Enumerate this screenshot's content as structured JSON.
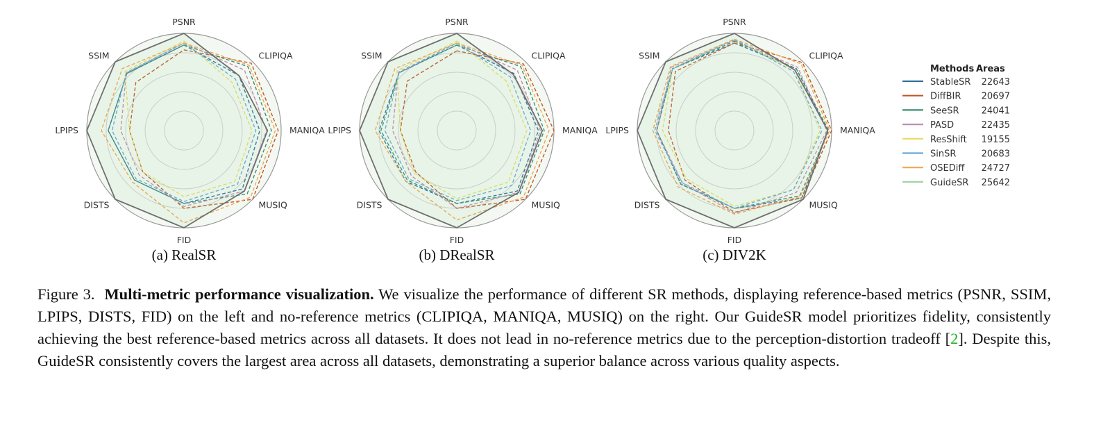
{
  "chart_data": [
    {
      "type": "radar",
      "caption": "(a) RealSR",
      "axes": [
        "PSNR",
        "CLIPIQA",
        "MANIQA",
        "MUSIQ",
        "FID",
        "DISTS",
        "LPIPS",
        "SSIM"
      ],
      "rlim": [
        0,
        1
      ],
      "series": [
        {
          "name": "StableSR",
          "values": [
            0.88,
            0.8,
            0.78,
            0.85,
            0.75,
            0.72,
            0.78,
            0.83
          ]
        },
        {
          "name": "DiffBIR",
          "values": [
            0.83,
            0.98,
            0.97,
            1.0,
            0.8,
            0.6,
            0.56,
            0.7
          ]
        },
        {
          "name": "SeeSR",
          "values": [
            0.88,
            0.93,
            0.9,
            0.92,
            0.75,
            0.72,
            0.78,
            0.83
          ]
        },
        {
          "name": "PASD",
          "values": [
            0.9,
            0.88,
            0.85,
            0.88,
            0.78,
            0.65,
            0.65,
            0.84
          ]
        },
        {
          "name": "ResShift",
          "values": [
            0.92,
            0.7,
            0.7,
            0.74,
            0.68,
            0.6,
            0.56,
            0.86
          ]
        },
        {
          "name": "SinSR",
          "values": [
            0.9,
            0.75,
            0.74,
            0.78,
            0.73,
            0.7,
            0.74,
            0.84
          ]
        },
        {
          "name": "OSEDiff",
          "values": [
            0.9,
            0.95,
            0.94,
            0.97,
            0.95,
            0.75,
            0.85,
            0.9
          ]
        },
        {
          "name": "GuideSR",
          "values": [
            1.0,
            0.8,
            0.86,
            0.88,
            1.0,
            1.0,
            1.0,
            1.0
          ]
        }
      ]
    },
    {
      "type": "radar",
      "caption": "(b) DRealSR",
      "axes": [
        "PSNR",
        "CLIPIQA",
        "MANIQA",
        "MUSIQ",
        "FID",
        "DISTS",
        "LPIPS",
        "SSIM"
      ],
      "rlim": [
        0,
        1
      ],
      "series": [
        {
          "name": "StableSR",
          "values": [
            0.88,
            0.83,
            0.84,
            0.88,
            0.75,
            0.74,
            0.8,
            0.84
          ]
        },
        {
          "name": "DiffBIR",
          "values": [
            0.82,
            0.97,
            1.0,
            1.0,
            0.8,
            0.6,
            0.58,
            0.72
          ]
        },
        {
          "name": "SeeSR",
          "values": [
            0.88,
            0.93,
            0.9,
            0.92,
            0.75,
            0.72,
            0.78,
            0.84
          ]
        },
        {
          "name": "PASD",
          "values": [
            0.9,
            0.88,
            0.86,
            0.9,
            0.8,
            0.66,
            0.66,
            0.85
          ]
        },
        {
          "name": "ResShift",
          "values": [
            0.92,
            0.72,
            0.72,
            0.75,
            0.7,
            0.62,
            0.58,
            0.87
          ]
        },
        {
          "name": "SinSR",
          "values": [
            0.9,
            0.78,
            0.76,
            0.8,
            0.72,
            0.7,
            0.74,
            0.84
          ]
        },
        {
          "name": "OSEDiff",
          "values": [
            0.9,
            0.95,
            0.95,
            0.97,
            0.92,
            0.74,
            0.84,
            0.9
          ]
        },
        {
          "name": "GuideSR",
          "values": [
            1.0,
            0.82,
            0.88,
            0.9,
            1.0,
            1.0,
            1.0,
            1.0
          ]
        }
      ]
    },
    {
      "type": "radar",
      "caption": "(c) DIV2K",
      "axes": [
        "PSNR",
        "CLIPIQA",
        "MANIQA",
        "MUSIQ",
        "FID",
        "DISTS",
        "LPIPS",
        "SSIM"
      ],
      "rlim": [
        0,
        1
      ],
      "series": [
        {
          "name": "StableSR",
          "values": [
            0.9,
            0.9,
            0.96,
            0.98,
            0.8,
            0.78,
            0.8,
            0.9
          ]
        },
        {
          "name": "DiffBIR",
          "values": [
            0.9,
            0.99,
            1.0,
            0.98,
            0.84,
            0.72,
            0.68,
            0.86
          ]
        },
        {
          "name": "SeeSR",
          "values": [
            0.92,
            0.9,
            0.97,
            0.95,
            0.8,
            0.78,
            0.8,
            0.9
          ]
        },
        {
          "name": "PASD",
          "values": [
            0.93,
            0.92,
            0.95,
            0.9,
            0.85,
            0.76,
            0.8,
            0.92
          ]
        },
        {
          "name": "ResShift",
          "values": [
            0.94,
            0.88,
            0.88,
            0.86,
            0.78,
            0.7,
            0.74,
            0.9
          ]
        },
        {
          "name": "SinSR",
          "values": [
            0.94,
            0.86,
            0.9,
            0.86,
            0.8,
            0.76,
            0.82,
            0.9
          ]
        },
        {
          "name": "OSEDiff",
          "values": [
            0.94,
            0.97,
            0.98,
            0.96,
            0.86,
            0.82,
            0.84,
            0.93
          ]
        },
        {
          "name": "GuideSR",
          "values": [
            1.0,
            0.88,
            0.96,
            1.0,
            1.0,
            1.0,
            1.0,
            1.0
          ]
        }
      ]
    }
  ],
  "legend": {
    "header_methods": "Methods",
    "header_areas": "Areas",
    "items": [
      {
        "name": "StableSR",
        "area": "22643",
        "color": "#2e6f9e"
      },
      {
        "name": "DiffBIR",
        "area": "20697",
        "color": "#c2572b"
      },
      {
        "name": "SeeSR",
        "area": "24041",
        "color": "#3a8f74"
      },
      {
        "name": "PASD",
        "area": "22435",
        "color": "#c48bb2"
      },
      {
        "name": "ResShift",
        "area": "19155",
        "color": "#e8dc62"
      },
      {
        "name": "SinSR",
        "area": "20683",
        "color": "#6ba7d8"
      },
      {
        "name": "OSEDiff",
        "area": "24727",
        "color": "#f0a650"
      },
      {
        "name": "GuideSR",
        "area": "25642",
        "color": "#9fd3a7"
      }
    ]
  },
  "caption": {
    "label": "Figure 3.",
    "title": "Multi-metric performance visualization.",
    "text_1": "We visualize the performance of different SR methods, displaying reference-based metrics (PSNR, SSIM, LPIPS, DISTS, FID) on the left and no-reference metrics (CLIPIQA, MANIQA, MUSIQ) on the right. Our GuideSR model prioritizes fidelity, consistently achieving the best reference-based metrics across all datasets. It does not lead in no-reference metrics due to the perception-distortion tradeoff [",
    "citation": "2",
    "text_2": "]. Despite this, GuideSR consistently covers the largest area across all datasets, demonstrating a superior balance across various quality aspects."
  }
}
